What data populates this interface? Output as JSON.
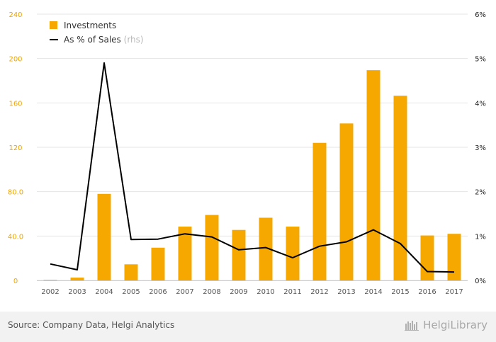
{
  "chart_data": {
    "type": "bar",
    "categories": [
      "2002",
      "2003",
      "2004",
      "2005",
      "2006",
      "2007",
      "2008",
      "2009",
      "2010",
      "2011",
      "2012",
      "2013",
      "2014",
      "2015",
      "2016",
      "2017"
    ],
    "series": [
      {
        "name": "Investments",
        "type": "bar",
        "axis": "left",
        "color": "#f7a800",
        "values": [
          0.5,
          2.5,
          78,
          14.5,
          29.5,
          48.5,
          59,
          45.5,
          56.5,
          48.5,
          124,
          141.5,
          189.5,
          166.5,
          40.5,
          42
        ]
      },
      {
        "name": "As % of Sales",
        "type": "line",
        "axis": "right",
        "color": "#000000",
        "values": [
          0.37,
          0.24,
          4.9,
          0.92,
          0.93,
          1.05,
          0.98,
          0.69,
          0.74,
          0.51,
          0.77,
          0.87,
          1.14,
          0.83,
          0.2,
          0.19
        ]
      }
    ],
    "legend_suffix": "(rhs)",
    "y_left": {
      "min": 0,
      "max": 240,
      "ticks": [
        "0",
        "40.0",
        "80.0",
        "120",
        "160",
        "200",
        "240"
      ],
      "tick_values": [
        0,
        40,
        80,
        120,
        160,
        200,
        240
      ]
    },
    "y_right": {
      "min": 0,
      "max": 6,
      "ticks": [
        "0%",
        "1%",
        "2%",
        "3%",
        "4%",
        "5%",
        "6%"
      ],
      "tick_values": [
        0,
        1,
        2,
        3,
        4,
        5,
        6
      ]
    },
    "grid": true,
    "legend_position": "top-left",
    "colors": {
      "axis_left_text": "#f0a500",
      "axis_right_text": "#222222",
      "grid": "#e5e5e5",
      "x_text": "#555555"
    }
  },
  "footer": {
    "source": "Source: Company Data, Helgi Analytics",
    "logo_text": "HelgiLibrary"
  }
}
